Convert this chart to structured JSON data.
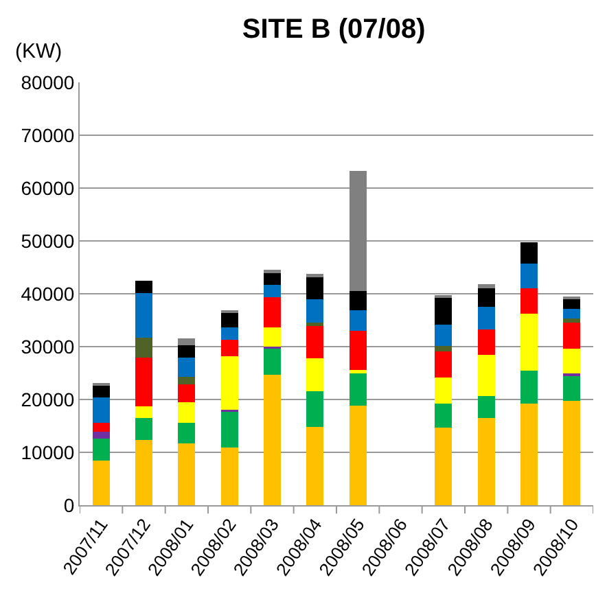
{
  "chart_data": {
    "type": "bar",
    "stacked": true,
    "title": "SITE B (07/08)",
    "ylabel": "(KW)",
    "categories": [
      "2007/11",
      "2007/12",
      "2008/01",
      "2008/02",
      "2008/03",
      "2008/04",
      "2008/05",
      "2008/06",
      "2008/07",
      "2008/08",
      "2008/09",
      "2008/10"
    ],
    "series": [
      {
        "color": "#ffc000",
        "values": [
          8400,
          12300,
          11700,
          10900,
          24700,
          14800,
          18800,
          null,
          14700,
          16500,
          19200,
          19800
        ]
      },
      {
        "color": "#00b050",
        "values": [
          4200,
          4200,
          3900,
          6900,
          5000,
          6800,
          6300,
          null,
          4500,
          4200,
          6200,
          4800
        ]
      },
      {
        "color": "#7030a0",
        "values": [
          1300,
          0,
          0,
          200,
          300,
          0,
          0,
          null,
          0,
          0,
          0,
          300
        ]
      },
      {
        "color": "#ffff00",
        "values": [
          0,
          2200,
          3900,
          10200,
          3600,
          6200,
          500,
          null,
          5000,
          7800,
          10800,
          4700
        ]
      },
      {
        "color": "#ff0000",
        "values": [
          1700,
          9200,
          3300,
          3100,
          5700,
          6100,
          7400,
          null,
          4900,
          4700,
          4900,
          5200
        ]
      },
      {
        "color": "#4f6228",
        "values": [
          0,
          3800,
          1500,
          0,
          0,
          700,
          0,
          null,
          1000,
          0,
          0,
          500
        ]
      },
      {
        "color": "#0070c0",
        "values": [
          4800,
          8400,
          3600,
          2300,
          2400,
          4300,
          3900,
          null,
          4000,
          4300,
          4600,
          1800
        ]
      },
      {
        "color": "#000000",
        "values": [
          2200,
          2400,
          2400,
          2900,
          2400,
          4200,
          3600,
          null,
          5200,
          3600,
          4000,
          1900
        ]
      },
      {
        "color": "#808080",
        "values": [
          400,
          0,
          1200,
          400,
          400,
          700,
          22700,
          null,
          400,
          700,
          0,
          500
        ]
      }
    ],
    "ylim": [
      0,
      80000
    ],
    "yticks": [
      0,
      10000,
      20000,
      30000,
      40000,
      50000,
      60000,
      70000,
      80000
    ],
    "grid": "y"
  }
}
